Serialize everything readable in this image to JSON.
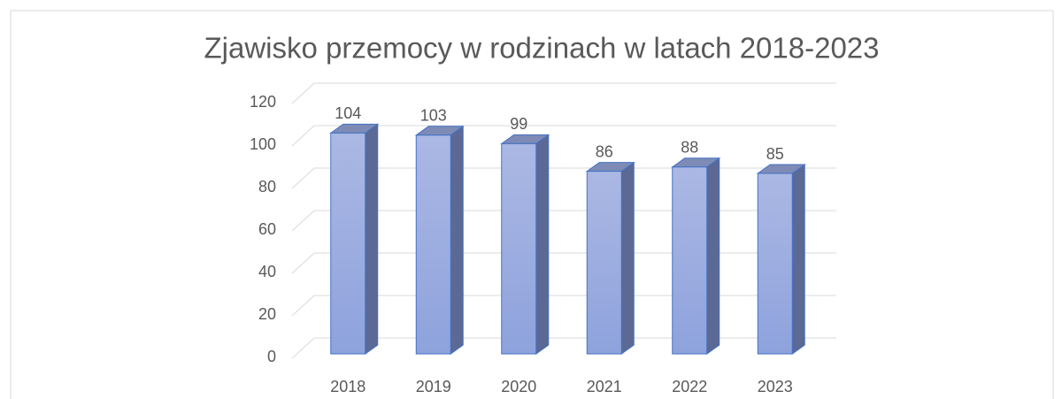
{
  "chart_data": {
    "type": "bar",
    "title": "Zjawisko przemocy w rodzinach w latach 2018-2023",
    "categories": [
      "2018",
      "2019",
      "2020",
      "2021",
      "2022",
      "2023"
    ],
    "values": [
      104,
      103,
      99,
      86,
      88,
      85
    ],
    "color": "#9aabe0",
    "ylim": [
      0,
      120
    ],
    "yticks": [
      0,
      20,
      40,
      60,
      80,
      100,
      120
    ],
    "grid": true
  }
}
